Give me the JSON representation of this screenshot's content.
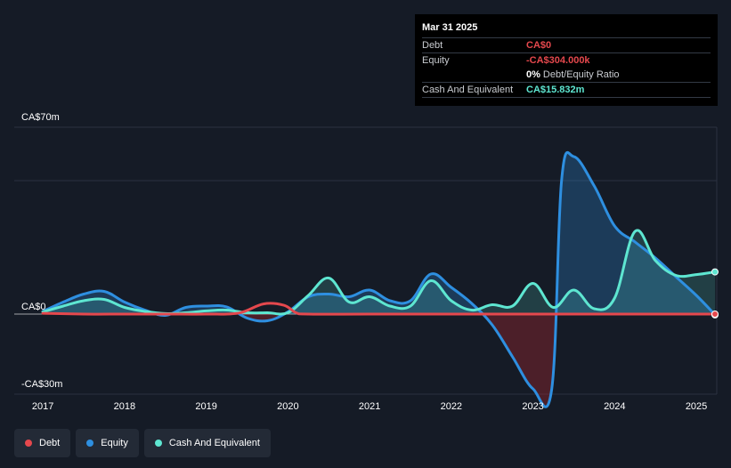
{
  "tooltip": {
    "date": "Mar 31 2025",
    "debt_label": "Debt",
    "debt_value": "CA$0",
    "equity_label": "Equity",
    "equity_value": "-CA$304.000k",
    "ratio_value": "0%",
    "ratio_label": "Debt/Equity Ratio",
    "cash_label": "Cash And Equivalent",
    "cash_value": "CA$15.832m"
  },
  "legend": [
    {
      "label": "Debt",
      "color": "#e5484d"
    },
    {
      "label": "Equity",
      "color": "#2e8fe0"
    },
    {
      "label": "Cash And Equivalent",
      "color": "#5ee6d1"
    }
  ],
  "chart_data": {
    "type": "area",
    "title": "",
    "xlabel": "",
    "ylabel": "",
    "ylim": [
      -30,
      70
    ],
    "y_ticks": [
      {
        "value": 70,
        "label": "CA$70m"
      },
      {
        "value": 0,
        "label": "CA$0"
      },
      {
        "value": -30,
        "label": "-CA$30m"
      }
    ],
    "x_ticks": [
      {
        "value": 2017,
        "label": "2017"
      },
      {
        "value": 2018,
        "label": "2018"
      },
      {
        "value": 2019,
        "label": "2019"
      },
      {
        "value": 2020,
        "label": "2020"
      },
      {
        "value": 2021,
        "label": "2021"
      },
      {
        "value": 2022,
        "label": "2022"
      },
      {
        "value": 2023,
        "label": "2023"
      },
      {
        "value": 2024,
        "label": "2024"
      },
      {
        "value": 2025,
        "label": "2025"
      }
    ],
    "xlim": [
      2016.65,
      2025.25
    ],
    "grid": true,
    "legend_position": "bottom-left",
    "series": [
      {
        "name": "Debt",
        "color": "#e5484d",
        "x": [
          2017.0,
          2017.5,
          2018.0,
          2018.5,
          2019.0,
          2019.4,
          2019.7,
          2019.95,
          2020.1,
          2020.25,
          2021.0,
          2022.0,
          2023.0,
          2024.0,
          2025.23
        ],
        "values": [
          0.3,
          0,
          0,
          0,
          0,
          0.4,
          3.8,
          3.3,
          0.5,
          0,
          0,
          0,
          0,
          0,
          0
        ]
      },
      {
        "name": "Equity",
        "color": "#2e8fe0",
        "x": [
          2017.0,
          2017.25,
          2017.5,
          2017.75,
          2018.0,
          2018.25,
          2018.5,
          2018.75,
          2019.0,
          2019.25,
          2019.5,
          2019.75,
          2020.0,
          2020.25,
          2020.5,
          2020.75,
          2021.0,
          2021.25,
          2021.5,
          2021.75,
          2022.0,
          2022.25,
          2022.5,
          2022.75,
          2023.0,
          2023.23,
          2023.35,
          2023.5,
          2023.75,
          2024.0,
          2024.25,
          2024.5,
          2024.75,
          2025.0,
          2025.23
        ],
        "values": [
          1,
          4.5,
          7.5,
          8.5,
          4.5,
          1.5,
          -0.5,
          2.5,
          3.0,
          2.7,
          -1.5,
          -2.5,
          0.8,
          6.5,
          7.5,
          6.5,
          9.0,
          5.0,
          5.0,
          15.0,
          10.0,
          4.0,
          -4.0,
          -16.0,
          -28.0,
          -28.0,
          50.0,
          59.0,
          48.0,
          33.0,
          27.0,
          21.0,
          14.0,
          7.0,
          -0.3
        ]
      },
      {
        "name": "Cash And Equivalent",
        "color": "#5ee6d1",
        "x": [
          2017.0,
          2017.25,
          2017.5,
          2017.75,
          2018.0,
          2018.25,
          2018.5,
          2018.75,
          2019.0,
          2019.25,
          2019.5,
          2019.75,
          2020.0,
          2020.25,
          2020.5,
          2020.75,
          2021.0,
          2021.25,
          2021.5,
          2021.75,
          2022.0,
          2022.25,
          2022.5,
          2022.75,
          2023.0,
          2023.25,
          2023.5,
          2023.75,
          2024.0,
          2024.25,
          2024.5,
          2024.75,
          2025.0,
          2025.23
        ],
        "values": [
          0.8,
          3.0,
          5.0,
          5.5,
          2.5,
          1.0,
          0.2,
          0.5,
          1.2,
          1.5,
          0.5,
          0.5,
          0.5,
          7.0,
          13.5,
          4.5,
          6.5,
          3.0,
          3.0,
          12.5,
          5.0,
          1.5,
          3.5,
          3.0,
          11.5,
          2.5,
          9.0,
          2.0,
          6.0,
          31.0,
          20.0,
          14.5,
          14.8,
          15.8
        ]
      }
    ]
  }
}
